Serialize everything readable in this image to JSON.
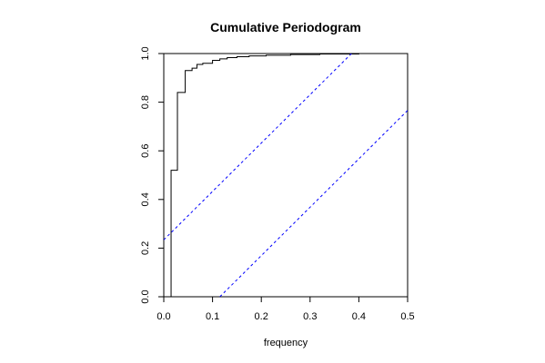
{
  "chart_data": {
    "type": "line",
    "title": "Cumulative Periodogram",
    "xlabel": "frequency",
    "ylabel": "",
    "xlim": [
      0,
      0.5
    ],
    "ylim": [
      0,
      1
    ],
    "x_ticks": [
      "0.0",
      "0.1",
      "0.2",
      "0.3",
      "0.4",
      "0.5"
    ],
    "y_ticks": [
      "0.0",
      "0.2",
      "0.4",
      "0.6",
      "0.8",
      "1.0"
    ],
    "grid": false,
    "series": [
      {
        "name": "",
        "style": "step",
        "color": "#000000",
        "points": [
          [
            0.015,
            0.0
          ],
          [
            0.015,
            0.52
          ],
          [
            0.028,
            0.52
          ],
          [
            0.028,
            0.84
          ],
          [
            0.044,
            0.84
          ],
          [
            0.044,
            0.93
          ],
          [
            0.058,
            0.93
          ],
          [
            0.058,
            0.94
          ],
          [
            0.068,
            0.94
          ],
          [
            0.068,
            0.955
          ],
          [
            0.08,
            0.955
          ],
          [
            0.08,
            0.96
          ],
          [
            0.1,
            0.96
          ],
          [
            0.1,
            0.972
          ],
          [
            0.115,
            0.972
          ],
          [
            0.115,
            0.978
          ],
          [
            0.13,
            0.978
          ],
          [
            0.13,
            0.983
          ],
          [
            0.15,
            0.983
          ],
          [
            0.15,
            0.987
          ],
          [
            0.175,
            0.987
          ],
          [
            0.175,
            0.99
          ],
          [
            0.21,
            0.99
          ],
          [
            0.21,
            0.993
          ],
          [
            0.26,
            0.993
          ],
          [
            0.26,
            0.996
          ],
          [
            0.32,
            0.996
          ],
          [
            0.32,
            0.998
          ],
          [
            0.4,
            0.998
          ],
          [
            0.4,
            1.0
          ],
          [
            0.5,
            1.0
          ]
        ]
      },
      {
        "name": "",
        "style": "dashed",
        "color": "#0000ff",
        "points": [
          [
            0.0,
            0.234
          ],
          [
            0.385,
            1.0
          ]
        ]
      },
      {
        "name": "",
        "style": "dashed",
        "color": "#0000ff",
        "points": [
          [
            0.115,
            0.0
          ],
          [
            0.5,
            0.766
          ]
        ]
      }
    ]
  }
}
